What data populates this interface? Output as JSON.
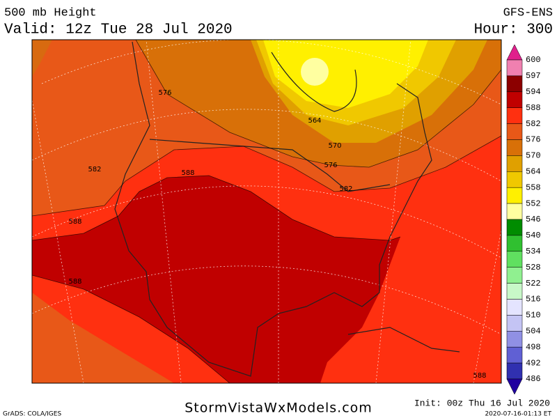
{
  "header": {
    "title": "500 mb Height",
    "valid": "Valid: 12z Tue 28 Jul 2020",
    "model": "GFS-ENS",
    "hour": "Hour: 300"
  },
  "colorbar": {
    "labels": [
      "600",
      "597",
      "594",
      "588",
      "582",
      "576",
      "570",
      "564",
      "558",
      "552",
      "546",
      "540",
      "534",
      "528",
      "522",
      "516",
      "510",
      "504",
      "498",
      "492",
      "486"
    ],
    "top_color": "#e0208c",
    "colors": [
      "#f080b0",
      "#8c0000",
      "#c00000",
      "#ff3010",
      "#e85818",
      "#d87008",
      "#e0a000",
      "#f0c800",
      "#fff000",
      "#ffffa0",
      "#008c00",
      "#30c030",
      "#60e060",
      "#90f090",
      "#c8f8c8",
      "#e4e4ff",
      "#c4c4f4",
      "#9090e4",
      "#6060d4",
      "#3030b0"
    ],
    "bottom_color": "#2000a0"
  },
  "contour_labels": [
    "576",
    "582",
    "588",
    "588",
    "588",
    "564",
    "570",
    "576",
    "582",
    "588"
  ],
  "footer": {
    "credit": "GrADS: COLA/IGES",
    "site": "StormVistaWxModels.com",
    "init": "Init: 00z Thu 16 Jul 2020",
    "timestamp": "2020-07-16-01:13 ET"
  }
}
